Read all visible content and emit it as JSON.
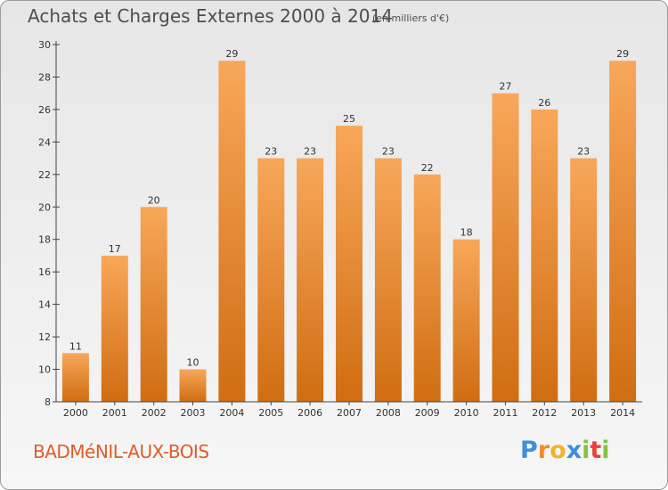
{
  "header": {
    "title": "Achats et Charges Externes 2000 à 2014",
    "unit": "(en milliers d'€)"
  },
  "footer": {
    "place": "BADMéNIL-AUX-BOIS",
    "logo": {
      "letters": [
        "P",
        "r",
        "o",
        "x",
        "i",
        "t",
        "i"
      ],
      "colors": [
        "#3d8fd8",
        "#f28b2a",
        "#f0b429",
        "#3d8fd8",
        "#89c241",
        "#e8413c",
        "#89c241"
      ]
    }
  },
  "colors": {
    "bar_light": "#f8a75a",
    "bar_dark": "#d06d12",
    "axis": "#444444",
    "text": "#333333"
  },
  "chart_data": {
    "type": "bar",
    "title": "Achats et Charges Externes 2000 à 2014",
    "subtitle": "(en milliers d'€)",
    "categories": [
      "2000",
      "2001",
      "2002",
      "2003",
      "2004",
      "2005",
      "2006",
      "2007",
      "2008",
      "2009",
      "2010",
      "2011",
      "2012",
      "2013",
      "2014"
    ],
    "values": [
      11,
      17,
      20,
      10,
      29,
      23,
      23,
      25,
      23,
      22,
      18,
      27,
      26,
      23,
      29
    ],
    "ylim": [
      8,
      30
    ],
    "yticks": [
      8,
      10,
      12,
      14,
      16,
      18,
      20,
      22,
      24,
      26,
      28,
      30
    ],
    "grid": false,
    "data_labels": true
  }
}
